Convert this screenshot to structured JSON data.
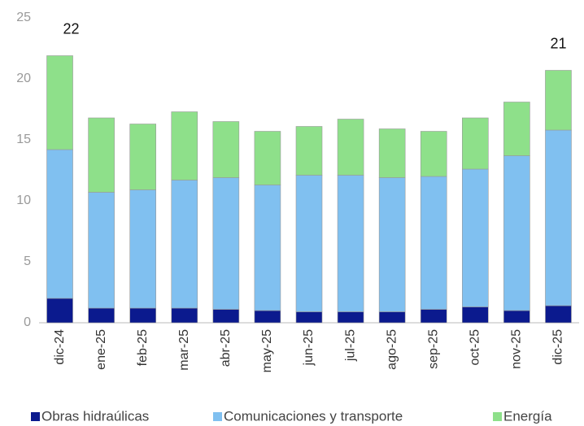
{
  "chart_data": {
    "type": "stacked_bar",
    "categories": [
      "dic-24",
      "ene-25",
      "feb-25",
      "mar-25",
      "abr-25",
      "may-25",
      "jun-25",
      "jul-25",
      "ago-25",
      "sep-25",
      "oct-25",
      "nov-25",
      "dic-25"
    ],
    "series": [
      {
        "name": "Obras hidraúlicas",
        "color": "#0b1a8e",
        "values": [
          2.0,
          1.2,
          1.2,
          1.2,
          1.1,
          1.0,
          0.9,
          0.9,
          0.9,
          1.1,
          1.3,
          1.0,
          1.4
        ]
      },
      {
        "name": "Comunicaciones y transporte",
        "color": "#80c0f0",
        "values": [
          12.2,
          9.5,
          9.7,
          10.5,
          10.8,
          10.3,
          11.2,
          11.2,
          11.0,
          10.9,
          11.3,
          12.7,
          14.4
        ]
      },
      {
        "name": "Energía",
        "color": "#8ee08a",
        "values": [
          7.7,
          6.1,
          5.4,
          5.6,
          4.6,
          4.4,
          4.0,
          4.6,
          4.0,
          3.7,
          4.2,
          4.4,
          4.9
        ]
      }
    ],
    "totals": [
      21.9,
      null,
      null,
      null,
      null,
      null,
      null,
      null,
      null,
      null,
      null,
      null,
      20.7
    ],
    "total_labels": [
      "22",
      null,
      null,
      null,
      null,
      null,
      null,
      null,
      null,
      null,
      null,
      null,
      "21"
    ],
    "ylim": [
      0,
      25
    ],
    "yticks": [
      0,
      5,
      10,
      15,
      20,
      25
    ],
    "grid": false,
    "legend": "bottom"
  }
}
